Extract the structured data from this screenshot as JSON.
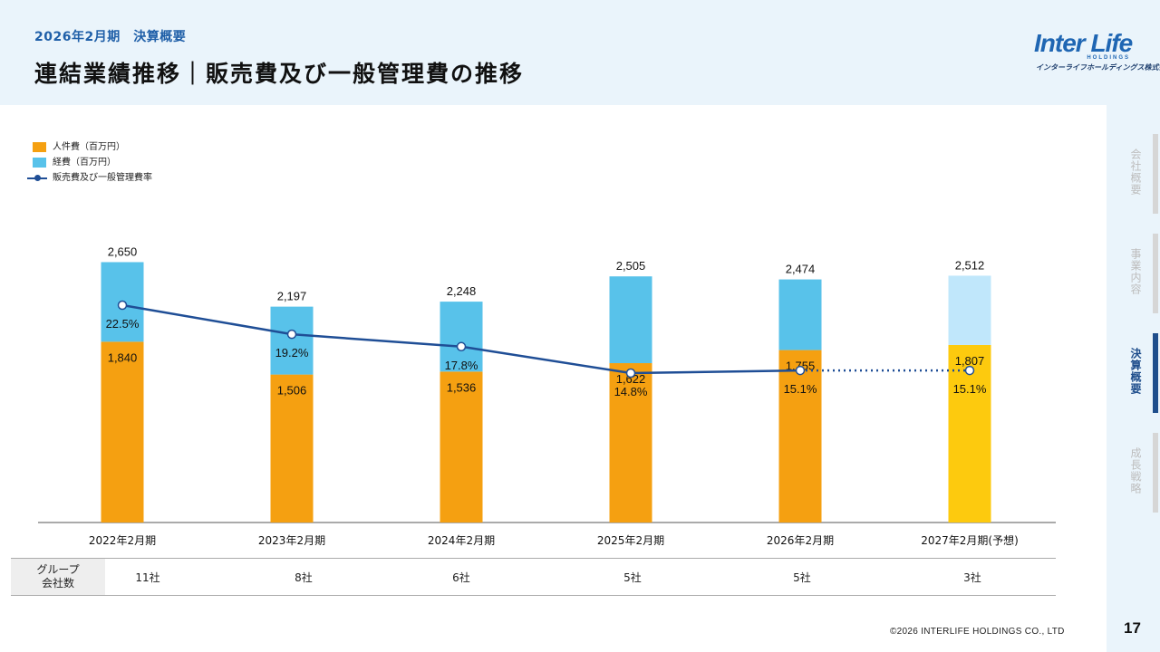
{
  "header": {
    "subtitle": "2026年2月期　決算概要",
    "title": "連結業績推移｜販売費及び一般管理費の推移"
  },
  "logo": {
    "main": "Inter Life",
    "sub": "HOLDINGS",
    "jp": "インターライフホールディングス株式会社"
  },
  "sidenav": {
    "items": [
      {
        "label": "会社概要",
        "active": false
      },
      {
        "label": "事業内容",
        "active": false
      },
      {
        "label": "決算概要",
        "active": true
      },
      {
        "label": "成長戦略",
        "active": false
      }
    ]
  },
  "legend": {
    "personnel": "人件費（百万円）",
    "expenses": "経費（百万円）",
    "ratio": "販売費及び一般管理費率"
  },
  "chart_data": {
    "type": "bar",
    "stacked": true,
    "categories": [
      "2022年2月期",
      "2023年2月期",
      "2024年2月期",
      "2025年2月期",
      "2026年2月期",
      "2027年2月期(予想)"
    ],
    "series": [
      {
        "name": "人件費（百万円）",
        "values": [
          1840,
          1506,
          1536,
          1622,
          1755,
          1807
        ],
        "color": "#f5a011",
        "forecast_color": "#fdca0e"
      },
      {
        "name": "経費（百万円）",
        "values": [
          810,
          691,
          712,
          883,
          719,
          705
        ],
        "color": "#58c2ea",
        "forecast_color": "#c0e7fb"
      }
    ],
    "totals": [
      "2,650",
      "2,197",
      "2,248",
      "2,505",
      "2,474",
      "2,512"
    ],
    "personnel_labels": [
      "1,840",
      "1,506",
      "1,536",
      "1,622",
      "1,755",
      "1,807"
    ],
    "line": {
      "name": "販売費及び一般管理費率",
      "values": [
        22.5,
        19.2,
        17.8,
        14.8,
        15.1,
        15.1
      ],
      "labels": [
        "22.5%",
        "19.2%",
        "17.8%",
        "14.8%",
        "15.1%",
        "15.1%"
      ],
      "color": "#1f4e96",
      "forecast_dotted": true
    },
    "forecast_index": 5
  },
  "table": {
    "row_header": [
      "グループ",
      "会社数"
    ],
    "values": [
      "11社",
      "8社",
      "6社",
      "5社",
      "5社",
      "3社"
    ]
  },
  "footer": {
    "copyright": "©2026 INTERLIFE HOLDINGS CO., LTD",
    "page": "17"
  }
}
